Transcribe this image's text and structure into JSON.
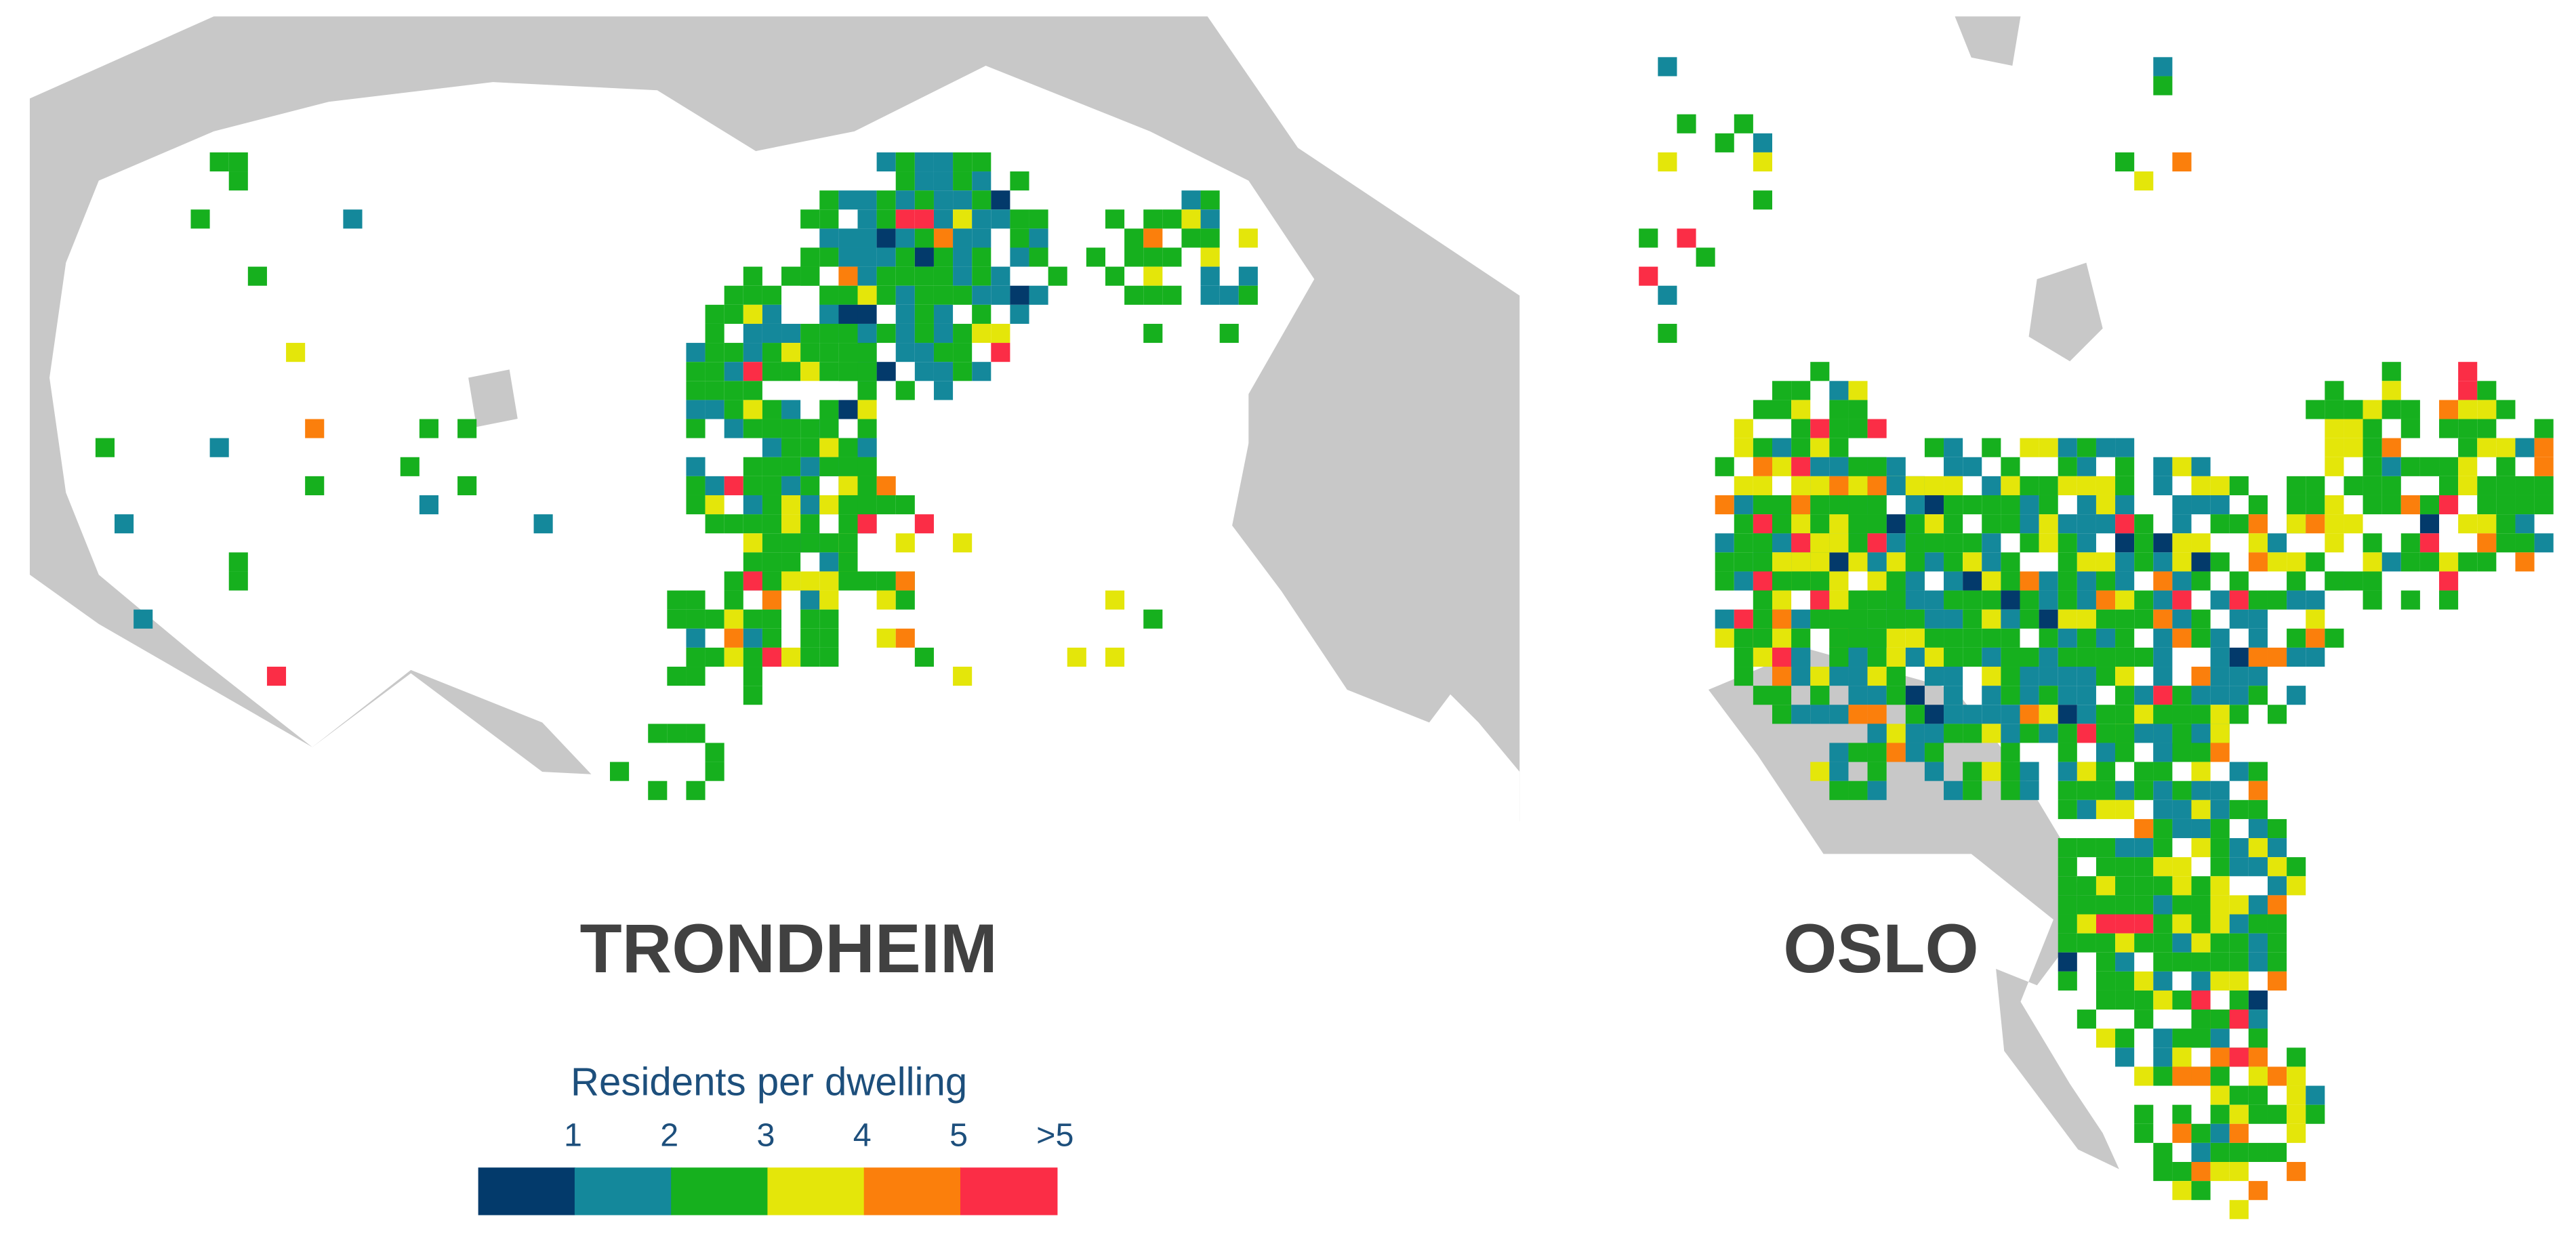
{
  "maps": [
    {
      "label": "TRONDHEIM"
    },
    {
      "label": "OSLO"
    }
  ],
  "legend": {
    "title": "Residents per dwelling",
    "items": [
      {
        "label": "1",
        "color": "#033a6b"
      },
      {
        "label": "2",
        "color": "#14889b"
      },
      {
        "label": "3",
        "color": "#16b01e"
      },
      {
        "label": "4",
        "color": "#e4e60a"
      },
      {
        "label": "5",
        "color": "#fb7f0c"
      },
      {
        "label": ">5",
        "color": "#fb2d46"
      }
    ]
  }
}
